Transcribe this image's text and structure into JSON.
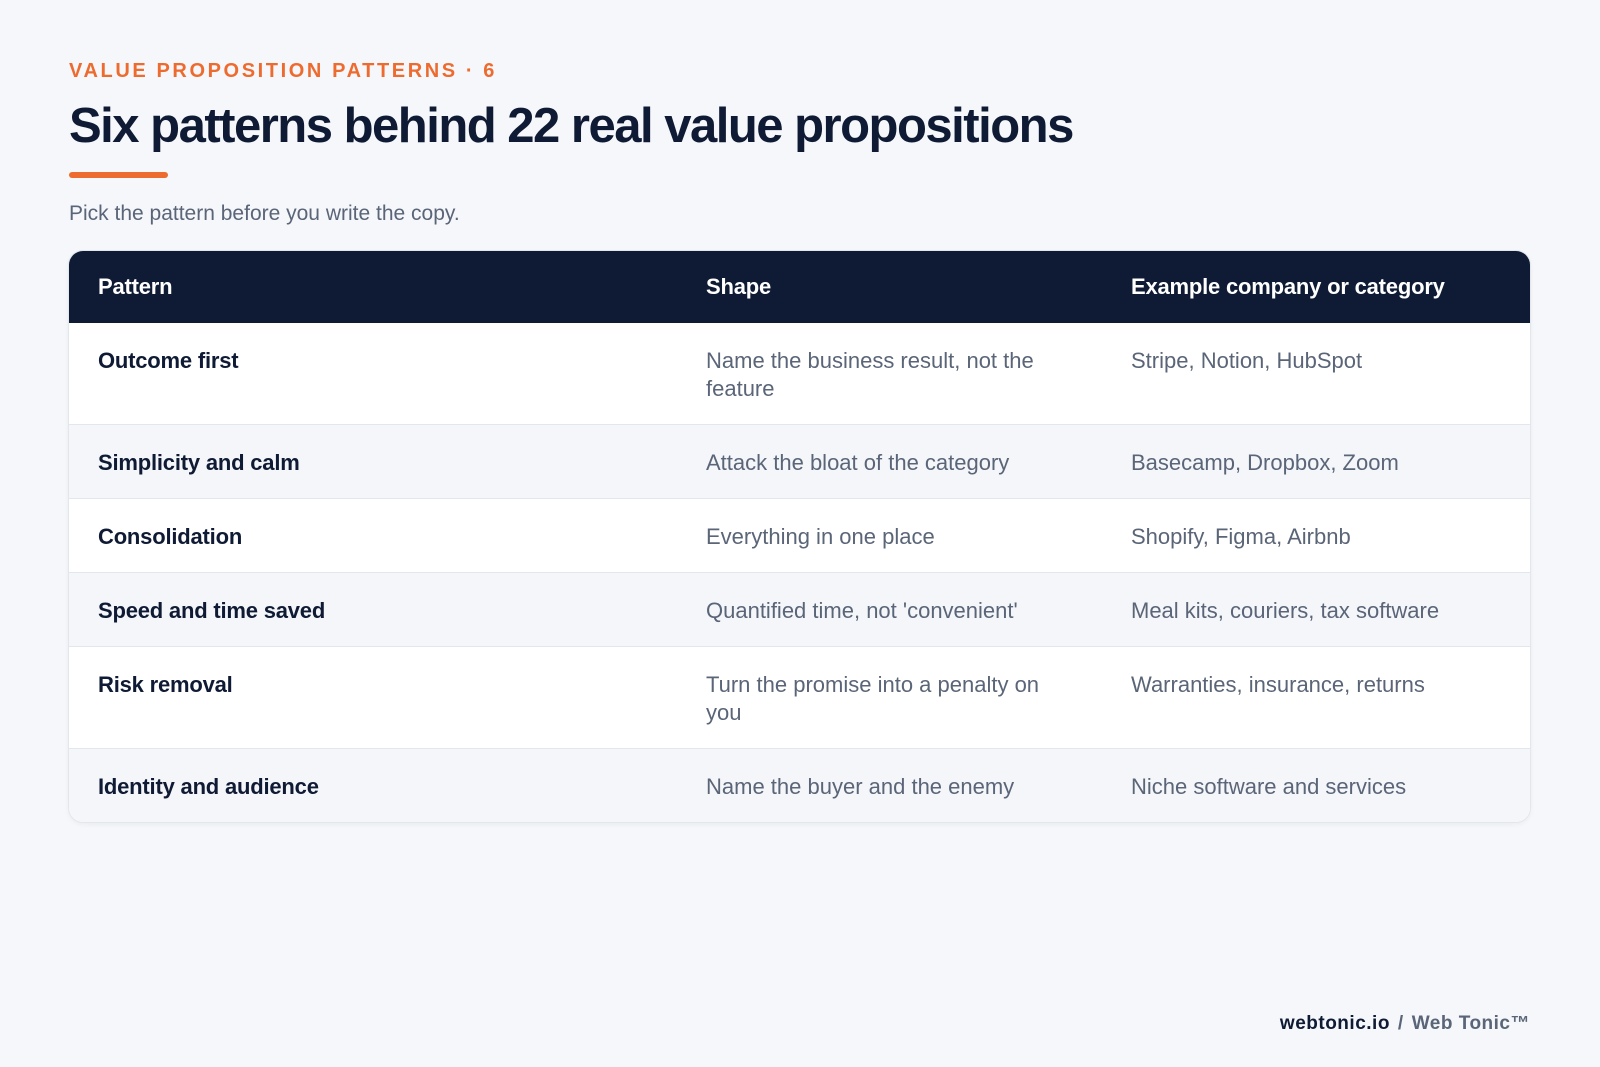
{
  "header": {
    "eyebrow": "VALUE PROPOSITION PATTERNS · 6",
    "title": "Six patterns behind 22 real value propositions",
    "subtitle": "Pick the pattern before you write the copy."
  },
  "table": {
    "columns": [
      "Pattern",
      "Shape",
      "Example company or category"
    ],
    "rows": [
      [
        "Outcome first",
        "Name the business result, not the feature",
        "Stripe, Notion, HubSpot"
      ],
      [
        "Simplicity and calm",
        "Attack the bloat of the category",
        "Basecamp, Dropbox, Zoom"
      ],
      [
        "Consolidation",
        "Everything in one place",
        "Shopify, Figma, Airbnb"
      ],
      [
        "Speed and time saved",
        "Quantified time, not 'convenient'",
        "Meal kits, couriers, tax software"
      ],
      [
        "Risk removal",
        "Turn the promise into a penalty on you",
        "Warranties, insurance, returns"
      ],
      [
        "Identity and audience",
        "Name the buyer and the enemy",
        "Niche software and services"
      ]
    ]
  },
  "footer": {
    "domain": "webtonic.io",
    "separator": "/",
    "brand": "Web Tonic™"
  },
  "colors": {
    "accent": "#ee6b2f",
    "navy": "#0f1b34",
    "muted_text": "#5a6578",
    "background": "#f5f7fa"
  }
}
